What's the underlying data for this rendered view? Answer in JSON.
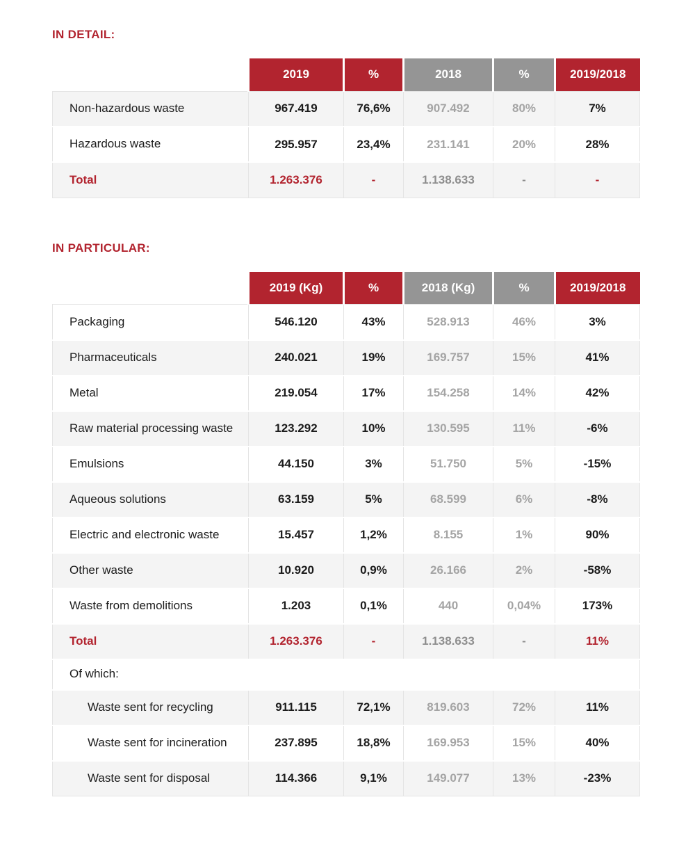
{
  "colors": {
    "accent_red": "#B2242F",
    "header_gray": "#959595",
    "row_alt_bg": "#F4F4F4",
    "gray_value_text": "#A4A4A4"
  },
  "sections": [
    {
      "heading": "IN DETAIL:",
      "columns": [
        {
          "label": "2019",
          "theme": "red"
        },
        {
          "label": "%",
          "theme": "red"
        },
        {
          "label": "2018",
          "theme": "gray"
        },
        {
          "label": "%",
          "theme": "gray"
        },
        {
          "label": "2019/2018",
          "theme": "red"
        }
      ],
      "rows": [
        {
          "kind": "data",
          "label": "Non-hazardous waste",
          "cells": [
            "967.419",
            "76,6%",
            "907.492",
            "80%",
            "7%"
          ]
        },
        {
          "kind": "data",
          "label": "Hazardous waste",
          "cells": [
            "295.957",
            "23,4%",
            "231.141",
            "20%",
            "28%"
          ]
        },
        {
          "kind": "total",
          "label": "Total",
          "cells": [
            "1.263.376",
            "-",
            "1.138.633",
            "-",
            "-"
          ]
        }
      ]
    },
    {
      "heading": "IN PARTICULAR:",
      "columns": [
        {
          "label": "2019 (Kg)",
          "theme": "red"
        },
        {
          "label": "%",
          "theme": "red"
        },
        {
          "label": "2018 (Kg)",
          "theme": "gray"
        },
        {
          "label": "%",
          "theme": "gray"
        },
        {
          "label": "2019/2018",
          "theme": "red"
        }
      ],
      "rows": [
        {
          "kind": "data",
          "label": "Packaging",
          "cells": [
            "546.120",
            "43%",
            "528.913",
            "46%",
            "3%"
          ]
        },
        {
          "kind": "data",
          "label": "Pharmaceuticals",
          "cells": [
            "240.021",
            "19%",
            "169.757",
            "15%",
            "41%"
          ]
        },
        {
          "kind": "data",
          "label": "Metal",
          "cells": [
            "219.054",
            "17%",
            "154.258",
            "14%",
            "42%"
          ]
        },
        {
          "kind": "data",
          "label": "Raw material processing waste",
          "cells": [
            "123.292",
            "10%",
            "130.595",
            "11%",
            "-6%"
          ]
        },
        {
          "kind": "data",
          "label": "Emulsions",
          "cells": [
            "44.150",
            "3%",
            "51.750",
            "5%",
            "-15%"
          ]
        },
        {
          "kind": "data",
          "label": "Aqueous solutions",
          "cells": [
            "63.159",
            "5%",
            "68.599",
            "6%",
            "-8%"
          ]
        },
        {
          "kind": "data",
          "label": "Electric and electronic waste",
          "cells": [
            "15.457",
            "1,2%",
            "8.155",
            "1%",
            "90%"
          ]
        },
        {
          "kind": "data",
          "label": "Other waste",
          "cells": [
            "10.920",
            "0,9%",
            "26.166",
            "2%",
            "-58%"
          ]
        },
        {
          "kind": "data",
          "label": "Waste from demolitions",
          "cells": [
            "1.203",
            "0,1%",
            "440",
            "0,04%",
            "173%"
          ]
        },
        {
          "kind": "total",
          "label": "Total",
          "cells": [
            "1.263.376",
            "-",
            "1.138.633",
            "-",
            "11%"
          ]
        },
        {
          "kind": "section",
          "label": "Of which:",
          "cells": []
        },
        {
          "kind": "sub",
          "label": "Waste sent for recycling",
          "cells": [
            "911.115",
            "72,1%",
            "819.603",
            "72%",
            "11%"
          ]
        },
        {
          "kind": "sub",
          "label": "Waste sent for incineration",
          "cells": [
            "237.895",
            "18,8%",
            "169.953",
            "15%",
            "40%"
          ]
        },
        {
          "kind": "sub",
          "label": "Waste sent for disposal",
          "cells": [
            "114.366",
            "9,1%",
            "149.077",
            "13%",
            "-23%"
          ]
        }
      ]
    }
  ]
}
